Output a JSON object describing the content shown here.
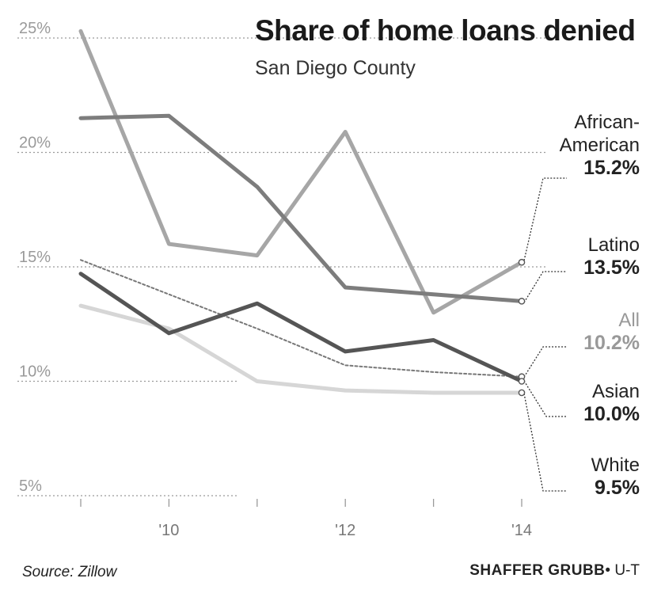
{
  "title": "Share of home loans denied",
  "subtitle": "San Diego County",
  "source": "Source: Zillow",
  "credit": {
    "name": "SHAFFER GRUBB",
    "sep": "•",
    "org": "U-T"
  },
  "chart_data": {
    "type": "line",
    "x": [
      2009,
      2010,
      2011,
      2012,
      2013,
      2014
    ],
    "x_ticks": [
      "'10",
      "'12",
      "'14"
    ],
    "y_ticks": [
      "5%",
      "10%",
      "15%",
      "20%",
      "25%"
    ],
    "ylim": [
      5,
      25
    ],
    "grid": true,
    "series": [
      {
        "name": "African-American",
        "name_lines": [
          "African-",
          "American"
        ],
        "value_label": "15.2%",
        "values": [
          25.3,
          16.0,
          15.5,
          20.9,
          13.0,
          15.2
        ],
        "color": "#a6a6a6",
        "style": "solid"
      },
      {
        "name": "Latino",
        "name_lines": [
          "Latino"
        ],
        "value_label": "13.5%",
        "values": [
          21.5,
          21.6,
          18.5,
          14.1,
          13.8,
          13.5
        ],
        "color": "#7d7d7d",
        "style": "solid"
      },
      {
        "name": "All",
        "name_lines": [
          "All"
        ],
        "value_label": "10.2%",
        "values": [
          15.3,
          13.8,
          12.3,
          10.7,
          10.4,
          10.2
        ],
        "color": "#777777",
        "style": "dotted"
      },
      {
        "name": "Asian",
        "name_lines": [
          "Asian"
        ],
        "value_label": "10.0%",
        "values": [
          14.7,
          12.1,
          13.4,
          11.3,
          11.8,
          10.0
        ],
        "color": "#555555",
        "style": "solid"
      },
      {
        "name": "White",
        "name_lines": [
          "White"
        ],
        "value_label": "9.5%",
        "values": [
          13.3,
          12.3,
          10.0,
          9.6,
          9.5,
          9.5
        ],
        "color": "#d6d6d6",
        "style": "solid"
      }
    ]
  }
}
